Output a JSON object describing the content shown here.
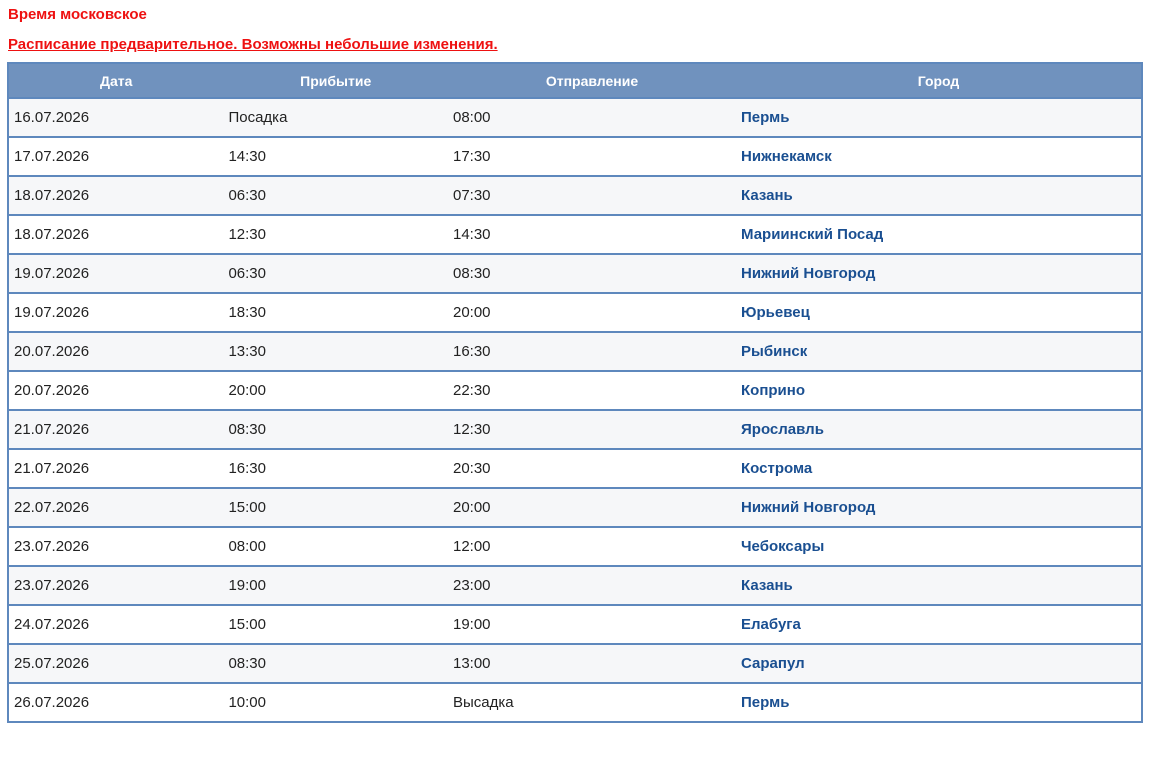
{
  "notices": {
    "moscow_time": "Время московское",
    "preliminary": "Расписание предварительное. Возможны небольшие изменения."
  },
  "table": {
    "columns": [
      {
        "key": "date",
        "label": "Дата"
      },
      {
        "key": "arrival",
        "label": "Прибытие"
      },
      {
        "key": "departure",
        "label": "Отправление"
      },
      {
        "key": "city",
        "label": "Город"
      }
    ],
    "rows": [
      {
        "date": "16.07.2026",
        "arrival": "Посадка",
        "departure": "08:00",
        "city": "Пермь"
      },
      {
        "date": "17.07.2026",
        "arrival": "14:30",
        "departure": "17:30",
        "city": "Нижнекамск"
      },
      {
        "date": "18.07.2026",
        "arrival": "06:30",
        "departure": "07:30",
        "city": "Казань"
      },
      {
        "date": "18.07.2026",
        "arrival": "12:30",
        "departure": "14:30",
        "city": "Мариинский Посад"
      },
      {
        "date": "19.07.2026",
        "arrival": "06:30",
        "departure": "08:30",
        "city": "Нижний Новгород"
      },
      {
        "date": "19.07.2026",
        "arrival": "18:30",
        "departure": "20:00",
        "city": "Юрьевец"
      },
      {
        "date": "20.07.2026",
        "arrival": "13:30",
        "departure": "16:30",
        "city": "Рыбинск"
      },
      {
        "date": "20.07.2026",
        "arrival": "20:00",
        "departure": "22:30",
        "city": "Коприно"
      },
      {
        "date": "21.07.2026",
        "arrival": "08:30",
        "departure": "12:30",
        "city": "Ярославль"
      },
      {
        "date": "21.07.2026",
        "arrival": "16:30",
        "departure": "20:30",
        "city": "Кострома"
      },
      {
        "date": "22.07.2026",
        "arrival": "15:00",
        "departure": "20:00",
        "city": "Нижний Новгород"
      },
      {
        "date": "23.07.2026",
        "arrival": "08:00",
        "departure": "12:00",
        "city": "Чебоксары"
      },
      {
        "date": "23.07.2026",
        "arrival": "19:00",
        "departure": "23:00",
        "city": "Казань"
      },
      {
        "date": "24.07.2026",
        "arrival": "15:00",
        "departure": "19:00",
        "city": "Елабуга"
      },
      {
        "date": "25.07.2026",
        "arrival": "08:30",
        "departure": "13:00",
        "city": "Сарапул"
      },
      {
        "date": "26.07.2026",
        "arrival": "10:00",
        "departure": "Высадка",
        "city": "Пермь"
      }
    ]
  },
  "colors": {
    "notice_red": "#ee1111",
    "header_bg": "#7092be",
    "header_text": "#ffffff",
    "border": "#5e88bd",
    "row_alt_bg": "#f6f7f9",
    "row_bg": "#ffffff",
    "cell_text": "#222222",
    "link": "#1a4f91"
  }
}
